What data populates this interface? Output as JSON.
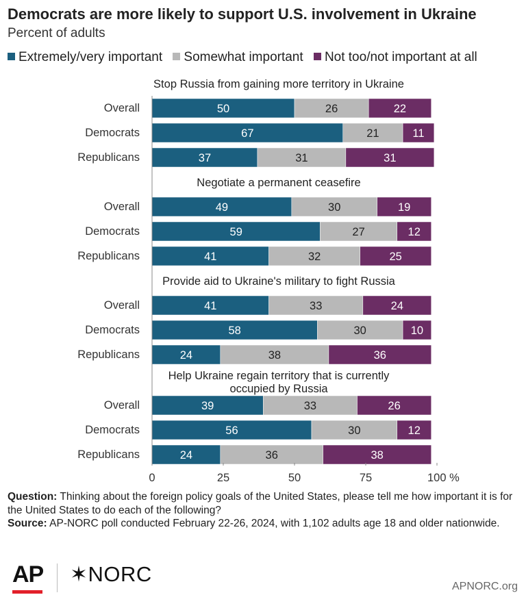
{
  "header": {
    "title": "Democrats are more likely to support U.S. involvement in Ukraine",
    "subtitle": "Percent of adults"
  },
  "legend": [
    {
      "label": "Extremely/very important",
      "color": "#1b5f7f"
    },
    {
      "label": "Somewhat important",
      "color": "#b8b8b8"
    },
    {
      "label": "Not too/not important at all",
      "color": "#6b2d64"
    }
  ],
  "chart_data": {
    "type": "bar",
    "orientation": "horizontal",
    "stacked": true,
    "xlim": [
      0,
      100
    ],
    "x_ticks": [
      "0",
      "25",
      "50",
      "75",
      "100 %"
    ],
    "series_names": [
      "Extremely/very important",
      "Somewhat important",
      "Not too/not important at all"
    ],
    "colors": [
      "#1b5f7f",
      "#b8b8b8",
      "#6b2d64"
    ],
    "groups": [
      {
        "title": [
          "Stop Russia from gaining more territory in Ukraine"
        ],
        "rows": [
          {
            "label": "Overall",
            "values": [
              50,
              26,
              22
            ]
          },
          {
            "label": "Democrats",
            "values": [
              67,
              21,
              11
            ]
          },
          {
            "label": "Republicans",
            "values": [
              37,
              31,
              31
            ]
          }
        ]
      },
      {
        "title": [
          "Negotiate a permanent ceasefire"
        ],
        "rows": [
          {
            "label": "Overall",
            "values": [
              49,
              30,
              19
            ]
          },
          {
            "label": "Democrats",
            "values": [
              59,
              27,
              12
            ]
          },
          {
            "label": "Republicans",
            "values": [
              41,
              32,
              25
            ]
          }
        ]
      },
      {
        "title": [
          "Provide aid to Ukraine's military to fight Russia"
        ],
        "rows": [
          {
            "label": "Overall",
            "values": [
              41,
              33,
              24
            ]
          },
          {
            "label": "Democrats",
            "values": [
              58,
              30,
              10
            ]
          },
          {
            "label": "Republicans",
            "values": [
              24,
              38,
              36
            ]
          }
        ]
      },
      {
        "title": [
          "Help Ukraine regain territory that is currently",
          "occupied by Russia"
        ],
        "rows": [
          {
            "label": "Overall",
            "values": [
              39,
              33,
              26
            ]
          },
          {
            "label": "Democrats",
            "values": [
              56,
              30,
              12
            ]
          },
          {
            "label": "Republicans",
            "values": [
              24,
              36,
              38
            ]
          }
        ]
      }
    ]
  },
  "footnote": {
    "question_label": "Question:",
    "question_text": "Thinking about the foreign policy goals of the United States, please tell me how important it is for the United States to do each of the following?",
    "source_label": "Source:",
    "source_text": "AP-NORC poll conducted February 22-26, 2024, with 1,102 adults age 18 and older nationwide."
  },
  "logos": {
    "ap": "AP",
    "norc": "NORC",
    "norc_mark": "✶",
    "site": "APNORC.org"
  }
}
